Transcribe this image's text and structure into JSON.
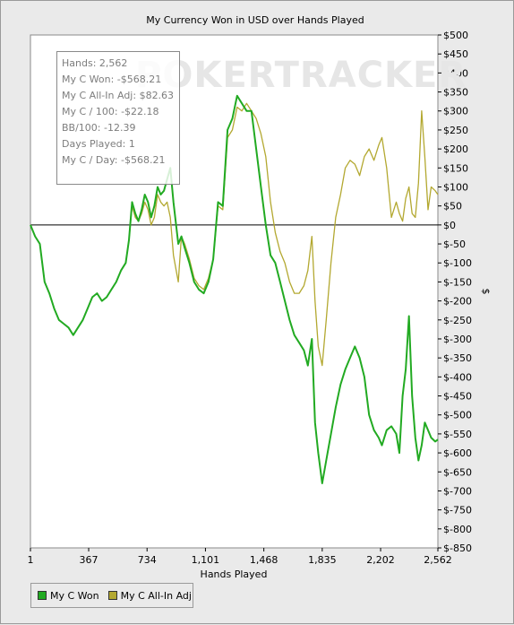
{
  "chart_data": {
    "type": "line",
    "title": "My Currency Won in USD over Hands Played",
    "xlabel": "Hands Played",
    "ylabel": "$",
    "xlim": [
      1,
      2562
    ],
    "ylim": [
      -850,
      500
    ],
    "x_ticks": [
      1,
      367,
      734,
      1101,
      1468,
      1835,
      2202,
      2562
    ],
    "x_tick_labels": [
      "1",
      "367",
      "734",
      "1,101",
      "1,468",
      "1,835",
      "2,202",
      "2,562"
    ],
    "y_ticks": [
      500,
      450,
      400,
      350,
      300,
      250,
      200,
      150,
      100,
      50,
      0,
      -50,
      -100,
      -150,
      -200,
      -250,
      -300,
      -350,
      -400,
      -450,
      -500,
      -550,
      -600,
      -650,
      -700,
      -750,
      -800,
      -850
    ],
    "y_tick_labels": [
      "$500",
      "$450",
      "$400",
      "$350",
      "$300",
      "$250",
      "$200",
      "$150",
      "$100",
      "$50",
      "$0",
      "$-50",
      "$-100",
      "$-150",
      "$-200",
      "$-250",
      "$-300",
      "$-350",
      "$-400",
      "$-450",
      "$-500",
      "$-550",
      "$-600",
      "$-650",
      "$-700",
      "$-750",
      "$-800",
      "$-850"
    ],
    "grid": false,
    "legend_position": "bottom-left",
    "series": [
      {
        "name": "My C Won",
        "color": "#22aa22",
        "x": [
          1,
          30,
          60,
          90,
          120,
          150,
          180,
          210,
          240,
          270,
          300,
          330,
          360,
          390,
          420,
          450,
          480,
          510,
          540,
          570,
          600,
          620,
          640,
          660,
          680,
          700,
          720,
          740,
          760,
          780,
          800,
          820,
          840,
          860,
          880,
          900,
          930,
          950,
          970,
          1000,
          1030,
          1060,
          1090,
          1120,
          1150,
          1180,
          1210,
          1240,
          1270,
          1300,
          1330,
          1360,
          1390,
          1420,
          1450,
          1480,
          1510,
          1540,
          1570,
          1600,
          1630,
          1660,
          1690,
          1720,
          1745,
          1770,
          1790,
          1810,
          1835,
          1860,
          1890,
          1920,
          1950,
          1980,
          2010,
          2040,
          2070,
          2100,
          2130,
          2160,
          2190,
          2210,
          2240,
          2270,
          2300,
          2320,
          2340,
          2360,
          2380,
          2400,
          2420,
          2440,
          2460,
          2480,
          2500,
          2520,
          2545,
          2562
        ],
        "y": [
          0,
          -30,
          -50,
          -150,
          -180,
          -220,
          -250,
          -260,
          -270,
          -290,
          -270,
          -250,
          -220,
          -190,
          -180,
          -200,
          -190,
          -170,
          -150,
          -120,
          -100,
          -40,
          60,
          30,
          10,
          40,
          80,
          60,
          20,
          50,
          100,
          80,
          90,
          120,
          150,
          60,
          -50,
          -30,
          -60,
          -100,
          -150,
          -170,
          -180,
          -150,
          -90,
          60,
          50,
          250,
          280,
          340,
          320,
          300,
          300,
          200,
          100,
          0,
          -80,
          -100,
          -150,
          -200,
          -250,
          -290,
          -310,
          -330,
          -370,
          -300,
          -520,
          -600,
          -680,
          -620,
          -550,
          -480,
          -420,
          -380,
          -350,
          -320,
          -350,
          -400,
          -500,
          -540,
          -560,
          -580,
          -540,
          -530,
          -550,
          -600,
          -450,
          -380,
          -240,
          -450,
          -560,
          -620,
          -580,
          -520,
          -540,
          -560,
          -570,
          -565
        ]
      },
      {
        "name": "My C All-In Adj",
        "color": "#b3a830",
        "x": [
          1,
          30,
          60,
          90,
          120,
          150,
          180,
          210,
          240,
          270,
          300,
          330,
          360,
          390,
          420,
          450,
          480,
          510,
          540,
          570,
          600,
          620,
          640,
          660,
          680,
          700,
          720,
          740,
          760,
          780,
          800,
          820,
          840,
          860,
          880,
          900,
          930,
          950,
          970,
          1000,
          1030,
          1060,
          1090,
          1120,
          1150,
          1180,
          1210,
          1240,
          1270,
          1300,
          1330,
          1360,
          1390,
          1420,
          1450,
          1480,
          1510,
          1540,
          1570,
          1600,
          1630,
          1660,
          1690,
          1720,
          1745,
          1770,
          1790,
          1810,
          1835,
          1860,
          1890,
          1920,
          1950,
          1980,
          2010,
          2040,
          2070,
          2100,
          2130,
          2160,
          2190,
          2210,
          2240,
          2270,
          2300,
          2320,
          2340,
          2360,
          2380,
          2400,
          2420,
          2440,
          2460,
          2480,
          2500,
          2520,
          2545,
          2562
        ],
        "y": [
          0,
          -30,
          -50,
          -150,
          -180,
          -220,
          -250,
          -260,
          -270,
          -290,
          -270,
          -250,
          -220,
          -190,
          -180,
          -200,
          -190,
          -170,
          -150,
          -120,
          -100,
          -40,
          50,
          20,
          10,
          30,
          60,
          40,
          0,
          20,
          80,
          60,
          50,
          60,
          20,
          -80,
          -150,
          -30,
          -50,
          -90,
          -140,
          -160,
          -170,
          -140,
          -90,
          50,
          40,
          230,
          250,
          310,
          300,
          320,
          300,
          280,
          240,
          180,
          60,
          -20,
          -70,
          -100,
          -150,
          -180,
          -180,
          -160,
          -120,
          -30,
          -200,
          -320,
          -370,
          -250,
          -100,
          20,
          80,
          150,
          170,
          160,
          130,
          180,
          200,
          170,
          210,
          230,
          150,
          20,
          60,
          30,
          10,
          70,
          100,
          30,
          20,
          110,
          300,
          180,
          40,
          100,
          90,
          80
        ]
      }
    ]
  },
  "tooltip": {
    "lines": [
      "Hands: 2,562",
      "My C Won: -$568.21",
      "My C All-In Adj: $82.63",
      "My C / 100: -$22.18",
      "BB/100: -12.39",
      "Days Played: 1",
      "My C / Day: -$568.21"
    ]
  },
  "watermark": "POKERTRACKER",
  "legend": {
    "items": [
      {
        "label": "My C Won",
        "color": "#22aa22"
      },
      {
        "label": "My C All-In Adj",
        "color": "#b3a830"
      }
    ]
  }
}
